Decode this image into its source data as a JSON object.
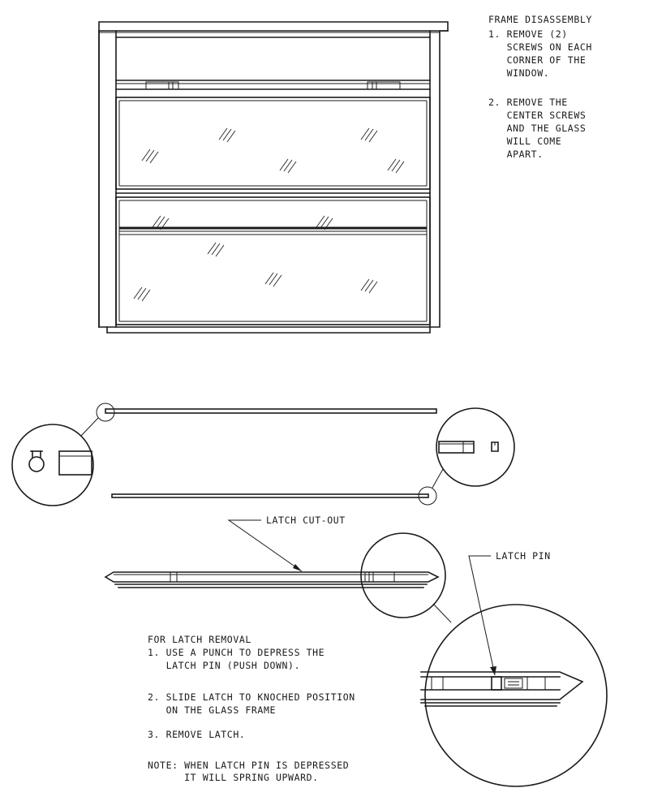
{
  "frame_disassembly": {
    "heading": "FRAME DISASSEMBLY",
    "steps": [
      "1. REMOVE (2)",
      "   SCREWS ON EACH",
      "   CORNER OF THE",
      "   WINDOW.",
      "2. REMOVE THE",
      "   CENTER SCREWS",
      "   AND THE GLASS",
      "   WILL COME",
      "   APART."
    ]
  },
  "callouts": {
    "latch_cutout": "LATCH CUT-OUT",
    "latch_pin": "LATCH PIN"
  },
  "latch_removal": {
    "heading": "FOR LATCH REMOVAL",
    "lines": [
      "1. USE A PUNCH TO DEPRESS THE",
      "   LATCH PIN (PUSH DOWN).",
      "2. SLIDE LATCH TO KNOCHED POSITION",
      "   ON THE GLASS FRAME",
      "3. REMOVE LATCH.",
      "NOTE: WHEN LATCH PIN IS DEPRESSED",
      "      IT WILL SPRING UPWARD."
    ]
  },
  "colors": {
    "ink": "#1a1a1a",
    "paper": "#ffffff"
  }
}
